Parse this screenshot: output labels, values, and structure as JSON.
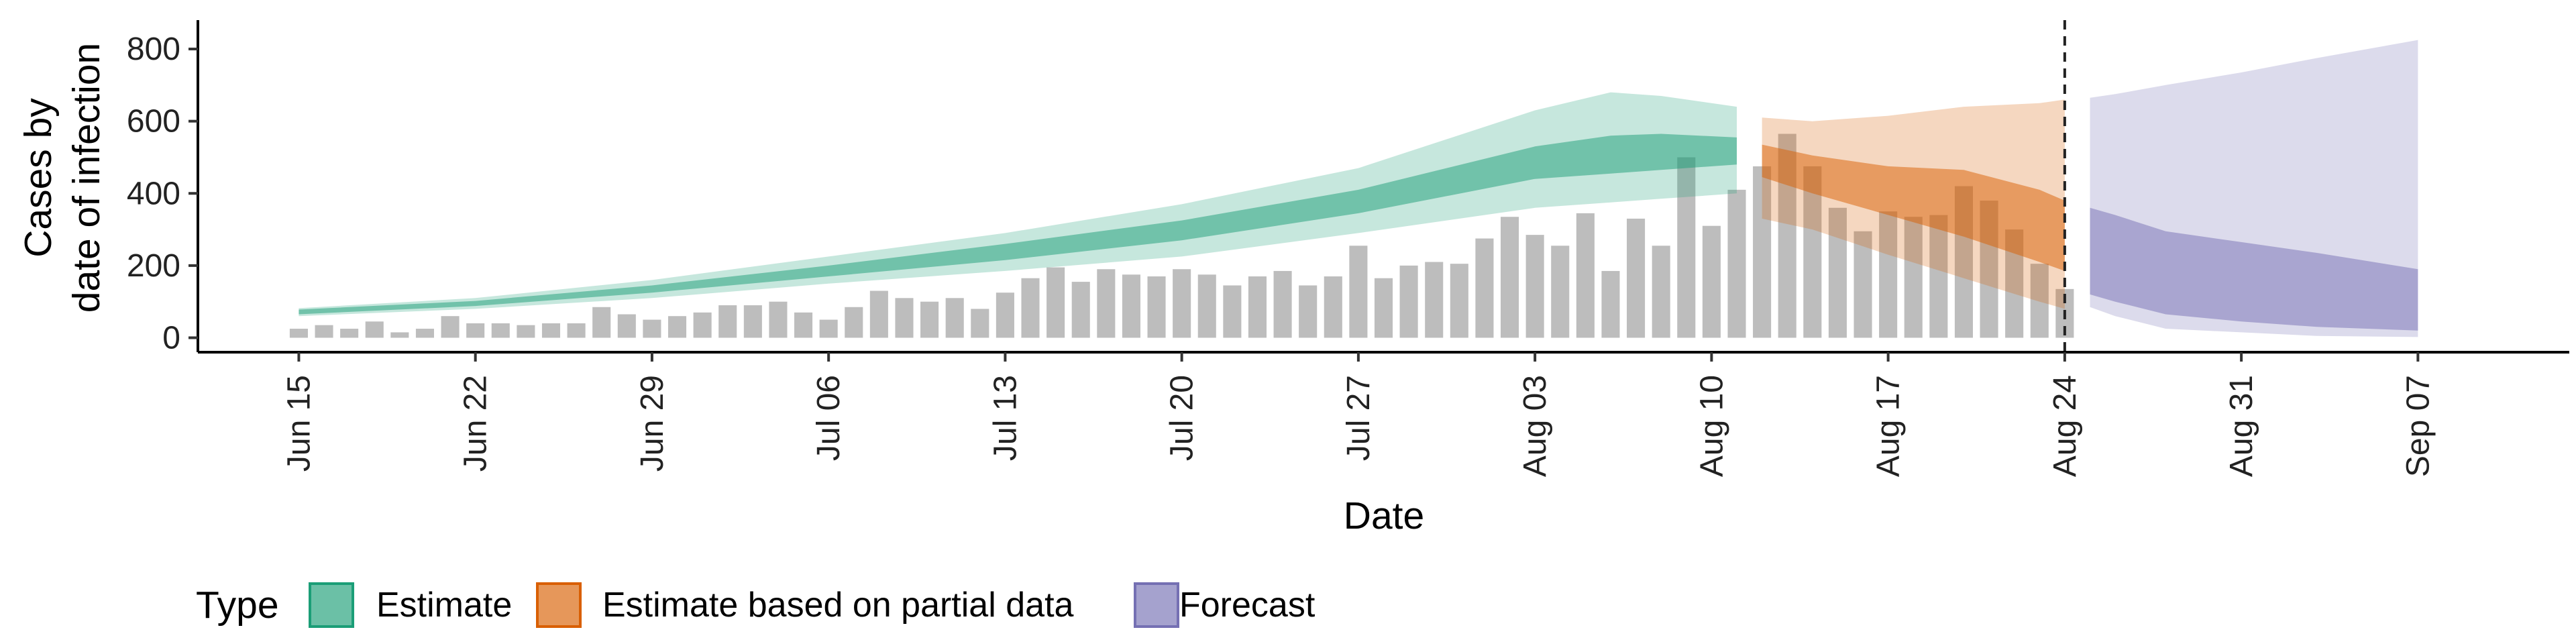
{
  "chart_data": {
    "type": "area",
    "xlabel": "Date",
    "ylabel_lines": [
      "Cases by",
      "date of infection"
    ],
    "x_start": "2020-06-15",
    "xlim": [
      "2020-06-11",
      "2020-09-13"
    ],
    "ylim": [
      -40,
      880
    ],
    "y_ticks": [
      0,
      200,
      400,
      600,
      800
    ],
    "x_ticks": [
      {
        "date": "2020-06-15",
        "label": "Jun 15"
      },
      {
        "date": "2020-06-22",
        "label": "Jun 22"
      },
      {
        "date": "2020-06-29",
        "label": "Jun 29"
      },
      {
        "date": "2020-07-06",
        "label": "Jul 06"
      },
      {
        "date": "2020-07-13",
        "label": "Jul 13"
      },
      {
        "date": "2020-07-20",
        "label": "Jul 20"
      },
      {
        "date": "2020-07-27",
        "label": "Jul 27"
      },
      {
        "date": "2020-08-03",
        "label": "Aug 03"
      },
      {
        "date": "2020-08-10",
        "label": "Aug 10"
      },
      {
        "date": "2020-08-17",
        "label": "Aug 17"
      },
      {
        "date": "2020-08-24",
        "label": "Aug 24"
      },
      {
        "date": "2020-08-31",
        "label": "Aug 31"
      },
      {
        "date": "2020-09-07",
        "label": "Sep 07"
      }
    ],
    "vline_date": "2020-08-24",
    "grid": false,
    "legend": {
      "position": "bottom",
      "title": "Type",
      "entries": [
        {
          "name": "Estimate",
          "color": "#1b9e77"
        },
        {
          "name": "Estimate based on partial data",
          "color": "#d95f02"
        },
        {
          "name": "Forecast",
          "color": "#7570b3"
        }
      ]
    },
    "bars": {
      "color": "#bdbdbd",
      "values": [
        25,
        35,
        25,
        45,
        15,
        25,
        60,
        40,
        40,
        35,
        40,
        40,
        85,
        65,
        50,
        60,
        70,
        90,
        90,
        100,
        70,
        50,
        85,
        130,
        110,
        100,
        110,
        80,
        125,
        165,
        195,
        155,
        190,
        175,
        170,
        190,
        175,
        145,
        170,
        185,
        145,
        170,
        255,
        165,
        200,
        210,
        205,
        275,
        335,
        285,
        255,
        345,
        185,
        330,
        255,
        500,
        310,
        410,
        475,
        565,
        475,
        360,
        295,
        350,
        335,
        340,
        420,
        380,
        300,
        205,
        135
      ]
    },
    "series": [
      {
        "name": "Estimate",
        "color": "#1b9e77",
        "points": [
          {
            "x": "2020-06-15",
            "lo90": 60,
            "lo50": 65,
            "hi50": 78,
            "hi90": 82
          },
          {
            "x": "2020-06-22",
            "lo90": 80,
            "lo50": 88,
            "hi50": 102,
            "hi90": 110
          },
          {
            "x": "2020-06-29",
            "lo90": 110,
            "lo50": 125,
            "hi50": 145,
            "hi90": 160
          },
          {
            "x": "2020-07-06",
            "lo90": 150,
            "lo50": 170,
            "hi50": 200,
            "hi90": 225
          },
          {
            "x": "2020-07-13",
            "lo90": 185,
            "lo50": 215,
            "hi50": 260,
            "hi90": 290
          },
          {
            "x": "2020-07-20",
            "lo90": 225,
            "lo50": 270,
            "hi50": 325,
            "hi90": 370
          },
          {
            "x": "2020-07-27",
            "lo90": 290,
            "lo50": 345,
            "hi50": 410,
            "hi90": 470
          },
          {
            "x": "2020-08-03",
            "lo90": 360,
            "lo50": 440,
            "hi50": 530,
            "hi90": 630
          },
          {
            "x": "2020-08-06",
            "lo90": 375,
            "lo50": 455,
            "hi50": 560,
            "hi90": 680
          },
          {
            "x": "2020-08-08",
            "lo90": 385,
            "lo50": 465,
            "hi50": 565,
            "hi90": 670
          },
          {
            "x": "2020-08-11",
            "lo90": 400,
            "lo50": 480,
            "hi50": 555,
            "hi90": 640
          }
        ]
      },
      {
        "name": "Estimate based on partial data",
        "color": "#d95f02",
        "points": [
          {
            "x": "2020-08-12",
            "lo90": 330,
            "lo50": 445,
            "hi50": 535,
            "hi90": 610
          },
          {
            "x": "2020-08-14",
            "lo90": 300,
            "lo50": 400,
            "hi50": 505,
            "hi90": 600
          },
          {
            "x": "2020-08-17",
            "lo90": 230,
            "lo50": 340,
            "hi50": 475,
            "hi90": 615
          },
          {
            "x": "2020-08-20",
            "lo90": 165,
            "lo50": 280,
            "hi50": 465,
            "hi90": 640
          },
          {
            "x": "2020-08-23",
            "lo90": 100,
            "lo50": 210,
            "hi50": 410,
            "hi90": 650
          },
          {
            "x": "2020-08-24",
            "lo90": 80,
            "lo50": 185,
            "hi50": 380,
            "hi90": 660
          }
        ]
      },
      {
        "name": "Forecast",
        "color": "#7570b3",
        "points": [
          {
            "x": "2020-08-25",
            "lo90": 85,
            "lo50": 120,
            "hi50": 360,
            "hi90": 665
          },
          {
            "x": "2020-08-26",
            "lo90": 60,
            "lo50": 100,
            "hi50": 340,
            "hi90": 675
          },
          {
            "x": "2020-08-28",
            "lo90": 25,
            "lo50": 65,
            "hi50": 295,
            "hi90": 700
          },
          {
            "x": "2020-08-31",
            "lo90": 15,
            "lo50": 45,
            "hi50": 265,
            "hi90": 735
          },
          {
            "x": "2020-09-03",
            "lo90": 5,
            "lo50": 30,
            "hi50": 235,
            "hi90": 775
          },
          {
            "x": "2020-09-07",
            "lo90": 2,
            "lo50": 20,
            "hi50": 190,
            "hi90": 825
          }
        ]
      }
    ]
  }
}
